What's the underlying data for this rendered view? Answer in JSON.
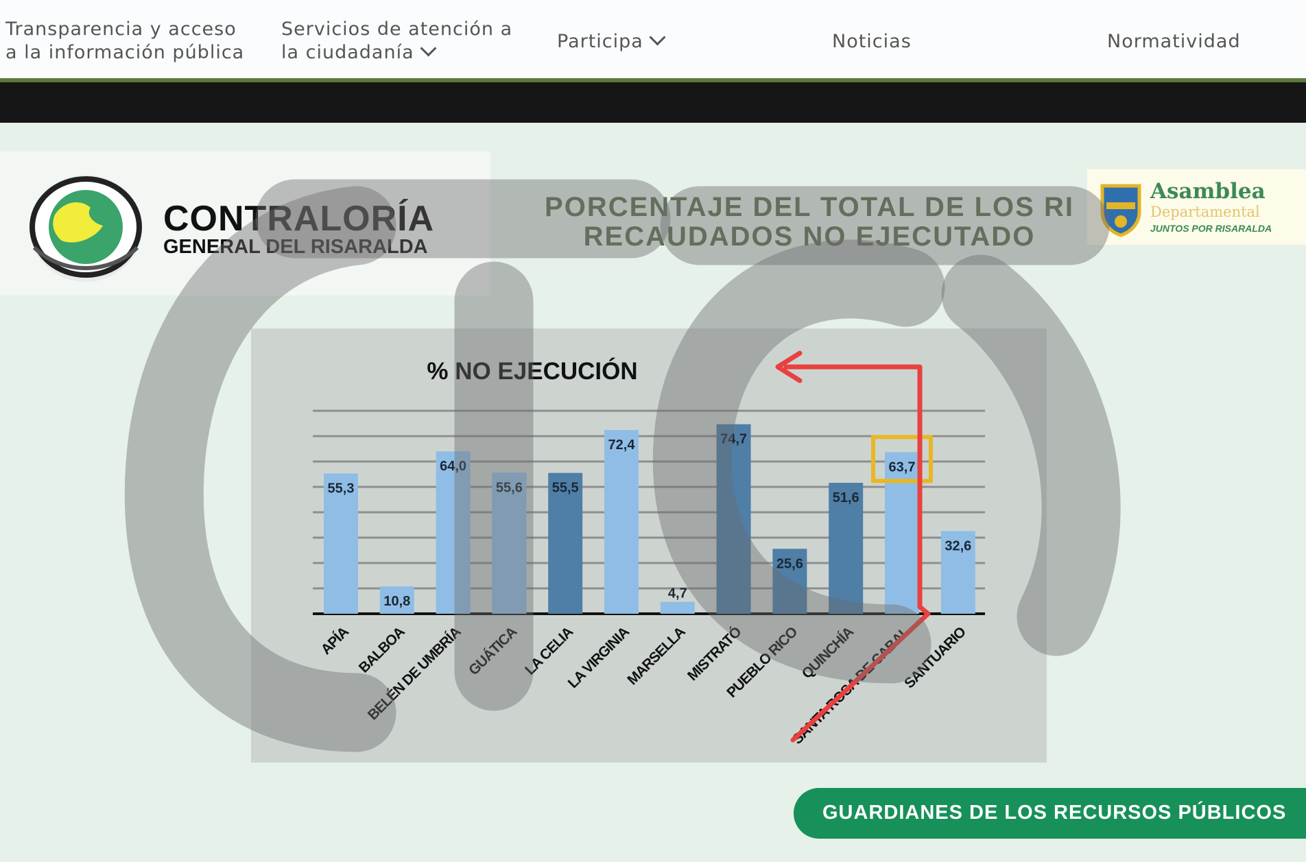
{
  "nav": {
    "item1_line1": "Transparencia y acceso",
    "item1_line2": "a la información pública",
    "item2_line1": "Servicios de atención a",
    "item2_line2": "la ciudadanía",
    "item3": "Participa",
    "item4": "Noticias",
    "item5": "Normatividad"
  },
  "slide": {
    "brand_line1": "CONTRALORÍA",
    "brand_line2": "GENERAL DEL RISARALDA",
    "title_line1": "PORCENTAJE DEL TOTAL DE LOS RI",
    "title_line2": "RECAUDADOS NO EJECUTADO",
    "asamblea_line1": "Asamblea",
    "asamblea_line2": "Departamental",
    "asamblea_line3": "JUNTOS POR RISARALDA",
    "banner": "GUARDIANES DE LOS RECURSOS PÚBLICOS"
  },
  "colors": {
    "bar_light": "#8fbde6",
    "bar_dark": "#4f7ea7",
    "highlight_box": "#e9b724",
    "arrow": "#e8413f",
    "banner": "#18905a"
  },
  "chart_data": {
    "type": "bar",
    "title": "% NO EJECUCIÓN",
    "categories": [
      "APÍA",
      "BALBOA",
      "BELÉN DE UMBRÍA",
      "GUÁTICA",
      "LA CELIA",
      "LA VIRGINIA",
      "MARSELLA",
      "MISTRATÓ",
      "PUEBLO RICO",
      "QUINCHÍA",
      "SANTA ROSA DE CABAL",
      "SANTUARIO"
    ],
    "values": [
      55.3,
      10.8,
      64.0,
      55.6,
      55.5,
      72.4,
      4.7,
      74.7,
      25.6,
      51.6,
      63.7,
      32.6
    ],
    "labels": [
      "55,3",
      "10,8",
      "64,0",
      "55,6",
      "55,5",
      "72,4",
      "4,7",
      "74,7",
      "25,6",
      "51,6",
      "63,7",
      "32,6"
    ],
    "ylim": [
      0,
      80
    ],
    "grid": true,
    "highlighted_category": "SANTA ROSA DE CABAL"
  }
}
